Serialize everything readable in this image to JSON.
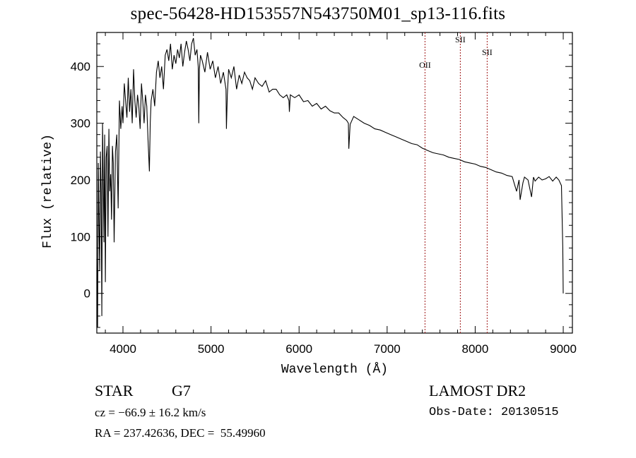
{
  "chart_data": {
    "type": "line",
    "title": "spec-56428-HD153557N543750M01_sp13-116.fits",
    "xlabel": "Wavelength (Å)",
    "ylabel": "Flux (relative)",
    "xlim": [
      3703,
      9104
    ],
    "ylim": [
      -70,
      460
    ],
    "xticks": [
      4000,
      5000,
      6000,
      7000,
      8000,
      9000
    ],
    "yticks": [
      0,
      100,
      200,
      300,
      400
    ],
    "grid": false,
    "line_markers": [
      {
        "label": "OII",
        "x": 7430
      },
      {
        "label": "SII",
        "x": 7831
      },
      {
        "label": "SII",
        "x": 8136
      }
    ],
    "series": [
      {
        "name": "spectrum",
        "x": [
          3703,
          3712,
          3720,
          3728,
          3736,
          3744,
          3752,
          3760,
          3768,
          3776,
          3784,
          3792,
          3800,
          3810,
          3820,
          3830,
          3840,
          3850,
          3860,
          3870,
          3880,
          3890,
          3900,
          3915,
          3930,
          3945,
          3960,
          3975,
          3990,
          4000,
          4015,
          4030,
          4045,
          4060,
          4075,
          4090,
          4105,
          4120,
          4135,
          4150,
          4165,
          4180,
          4195,
          4210,
          4225,
          4240,
          4255,
          4270,
          4285,
          4300,
          4310,
          4320,
          4340,
          4360,
          4380,
          4400,
          4420,
          4440,
          4460,
          4480,
          4500,
          4520,
          4540,
          4560,
          4580,
          4600,
          4620,
          4640,
          4660,
          4680,
          4700,
          4720,
          4740,
          4760,
          4780,
          4800,
          4820,
          4840,
          4855,
          4861,
          4868,
          4880,
          4900,
          4930,
          4960,
          4990,
          5020,
          5050,
          5080,
          5110,
          5140,
          5170,
          5175,
          5185,
          5200,
          5230,
          5260,
          5290,
          5320,
          5350,
          5380,
          5410,
          5440,
          5470,
          5500,
          5540,
          5580,
          5620,
          5660,
          5700,
          5740,
          5780,
          5820,
          5860,
          5885,
          5890,
          5900,
          5950,
          6000,
          6050,
          6100,
          6150,
          6200,
          6250,
          6300,
          6350,
          6400,
          6450,
          6500,
          6540,
          6560,
          6565,
          6580,
          6620,
          6680,
          6740,
          6800,
          6860,
          6920,
          6980,
          7040,
          7100,
          7160,
          7220,
          7280,
          7340,
          7400,
          7460,
          7520,
          7580,
          7640,
          7700,
          7760,
          7820,
          7880,
          7940,
          8000,
          8060,
          8120,
          8180,
          8240,
          8300,
          8360,
          8420,
          8470,
          8498,
          8510,
          8542,
          8560,
          8600,
          8640,
          8662,
          8680,
          8720,
          8760,
          8800,
          8840,
          8880,
          8920,
          8950,
          8980,
          8995,
          9000
        ],
        "y": [
          60,
          -60,
          230,
          120,
          40,
          250,
          180,
          -40,
          300,
          200,
          90,
          280,
          20,
          240,
          260,
          100,
          290,
          180,
          210,
          130,
          260,
          230,
          90,
          250,
          280,
          150,
          340,
          290,
          330,
          300,
          370,
          340,
          310,
          380,
          320,
          360,
          300,
          395,
          340,
          310,
          350,
          330,
          290,
          370,
          340,
          300,
          350,
          330,
          270,
          215,
          300,
          340,
          360,
          330,
          390,
          410,
          380,
          400,
          360,
          420,
          430,
          410,
          440,
          395,
          420,
          405,
          430,
          415,
          440,
          400,
          425,
          445,
          430,
          410,
          440,
          450,
          420,
          430,
          400,
          300,
          395,
          420,
          410,
          390,
          425,
          395,
          410,
          380,
          400,
          370,
          390,
          360,
          290,
          350,
          395,
          380,
          400,
          360,
          385,
          370,
          390,
          380,
          375,
          360,
          380,
          370,
          365,
          375,
          355,
          360,
          360,
          350,
          345,
          350,
          340,
          320,
          350,
          345,
          350,
          338,
          340,
          330,
          335,
          325,
          330,
          322,
          318,
          318,
          310,
          305,
          300,
          255,
          298,
          312,
          306,
          300,
          296,
          290,
          288,
          284,
          280,
          276,
          272,
          268,
          264,
          262,
          256,
          252,
          248,
          246,
          244,
          240,
          238,
          236,
          232,
          230,
          228,
          224,
          222,
          218,
          214,
          212,
          208,
          206,
          180,
          200,
          165,
          195,
          205,
          200,
          170,
          205,
          198,
          205,
          200,
          202,
          206,
          198,
          205,
          200,
          190,
          80,
          0
        ]
      }
    ],
    "annotations": [
      "STAR",
      "G7",
      "LAMOST DR2",
      "cz = -66.9 ± 16.2 km/s",
      "Obs-Date: 20130515",
      "RA = 237.42636, DEC =  55.49960"
    ]
  },
  "info": {
    "class": "STAR",
    "subclass": "G7",
    "survey": "LAMOST DR2",
    "cz": "cz = −66.9 ± 16.2 km/s",
    "obs_date": "Obs-Date: 20130515",
    "coords": "RA = 237.42636, DEC =  55.49960"
  }
}
